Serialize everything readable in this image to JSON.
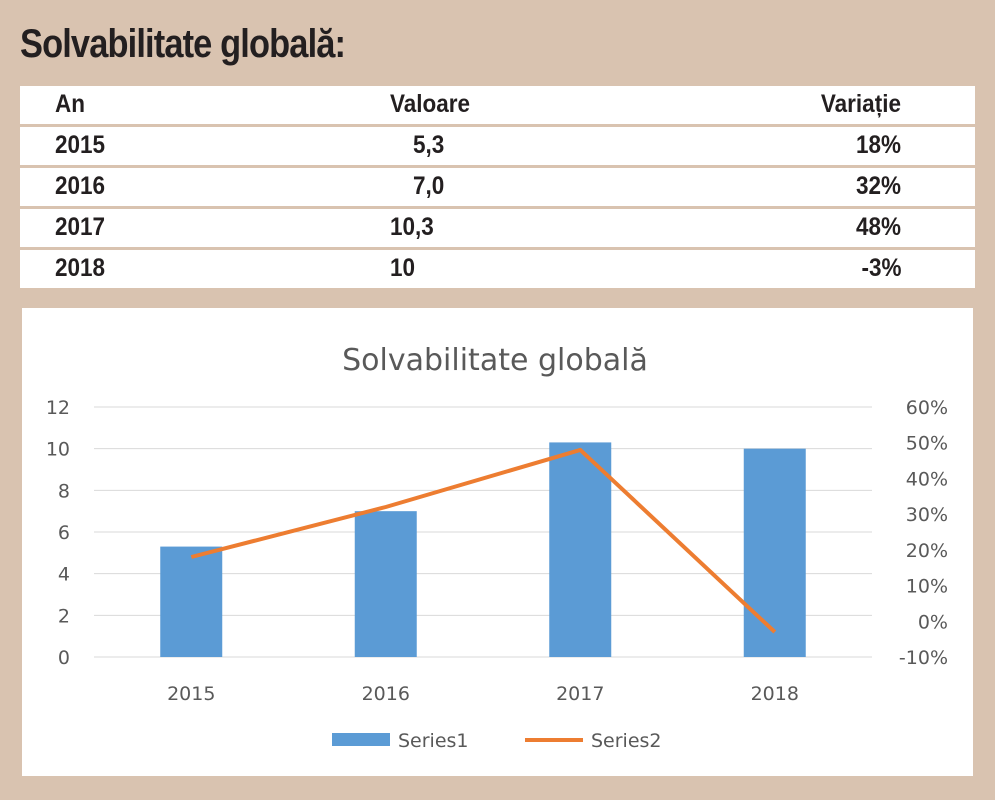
{
  "title": "Solvabilitate globală:",
  "table": {
    "headers": [
      "An",
      "Valoare",
      "Variație"
    ],
    "rows": [
      [
        "2015",
        "5,3",
        "18%"
      ],
      [
        "2016",
        "7,0",
        "32%"
      ],
      [
        "2017",
        "10,3",
        "48%"
      ],
      [
        "2018",
        "10",
        "-3%"
      ]
    ]
  },
  "chart_data": {
    "type": "bar",
    "title": "Solvabilitate globală",
    "categories": [
      "2015",
      "2016",
      "2017",
      "2018"
    ],
    "series": [
      {
        "name": "Series1",
        "type": "bar",
        "axis": "left",
        "values": [
          5.3,
          7.0,
          10.3,
          10
        ],
        "color": "#5b9bd5"
      },
      {
        "name": "Series2",
        "type": "line",
        "axis": "right",
        "values": [
          0.18,
          0.32,
          0.48,
          -0.03
        ],
        "color": "#ed7d31"
      }
    ],
    "ylim": [
      0,
      12
    ],
    "yticks": [
      "0",
      "2",
      "4",
      "6",
      "8",
      "10",
      "12"
    ],
    "y2lim": [
      -0.1,
      0.6
    ],
    "y2ticks": [
      "-10%",
      "0%",
      "10%",
      "20%",
      "30%",
      "40%",
      "50%",
      "60%"
    ],
    "grid": true,
    "legend": "bottom"
  }
}
